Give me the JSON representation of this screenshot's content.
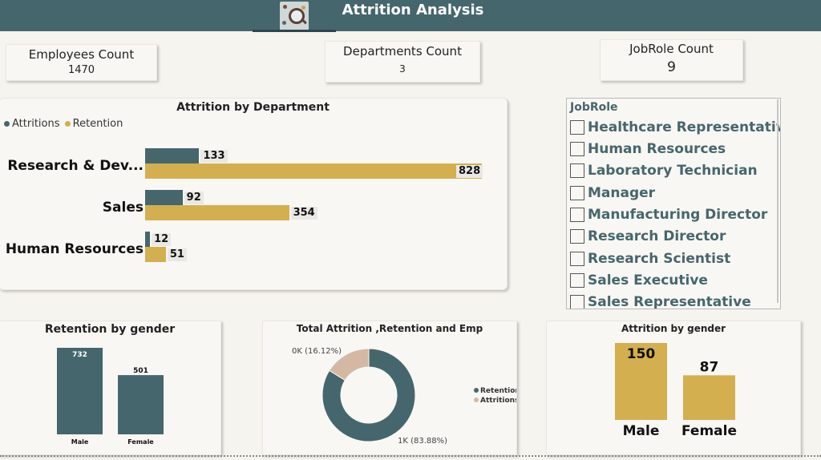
{
  "header": {
    "title": "Attrition Analysis"
  },
  "kpis": {
    "employees": {
      "label": "Employees Count",
      "value": "1470"
    },
    "departments": {
      "label": "Departments Count",
      "value": "3"
    },
    "jobroles": {
      "label": "JobRole Count",
      "value": "9"
    }
  },
  "dept_chart": {
    "title": "Attrition by Department",
    "legend": [
      {
        "name": "Attritions",
        "color": "#46666e"
      },
      {
        "name": "Retention",
        "color": "#d4af4f"
      }
    ],
    "chart_data": {
      "type": "bar",
      "title": "Attrition by Department",
      "categories": [
        "Research & Dev...",
        "Sales",
        "Human Resources"
      ],
      "series": [
        {
          "name": "Attritions",
          "values": [
            133,
            92,
            12
          ],
          "color": "#46666e"
        },
        {
          "name": "Retention",
          "values": [
            828,
            354,
            51
          ],
          "color": "#d4af4f"
        }
      ],
      "xlim": [
        0,
        828
      ],
      "orientation": "horizontal",
      "legend": "top-left"
    }
  },
  "slicer": {
    "title": "JobRole",
    "items": [
      "Healthcare Representative",
      "Human Resources",
      "Laboratory Technician",
      "Manager",
      "Manufacturing Director",
      "Research Director",
      "Research Scientist",
      "Sales Executive",
      "Sales Representative"
    ]
  },
  "retention_gender": {
    "title": "Retention by gender",
    "chart_data": {
      "type": "bar",
      "categories": [
        "Male",
        "Female"
      ],
      "values": [
        732,
        501
      ],
      "ylim": [
        0,
        732
      ],
      "color": "#46666e"
    }
  },
  "donut": {
    "title": "Total Attrition ,Retention and Emp",
    "chart_data": {
      "type": "pie",
      "labels": [
        "Retention",
        "Attritions"
      ],
      "values": [
        83.88,
        16.12
      ],
      "data_labels": [
        "1K (83.88%)",
        "0K (16.12%)"
      ],
      "colors": [
        "#46666e",
        "#d4b8a4"
      ],
      "legend": "right"
    }
  },
  "attrition_gender": {
    "title": "Attrition by gender",
    "chart_data": {
      "type": "bar",
      "categories": [
        "Male",
        "Female"
      ],
      "values": [
        150,
        87
      ],
      "ylim": [
        0,
        150
      ],
      "color": "#d4af4f"
    }
  }
}
